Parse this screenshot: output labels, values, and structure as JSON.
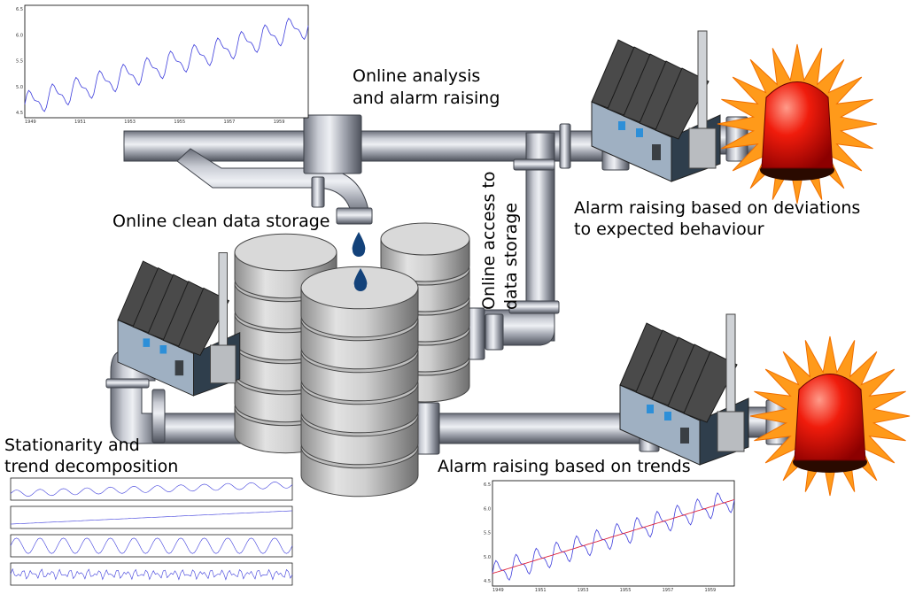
{
  "labels": {
    "online_analysis": [
      "Online analysis",
      "and alarm raising"
    ],
    "clean_storage": [
      "Online clean data storage"
    ],
    "online_access": [
      "Online access to",
      "data storage"
    ],
    "deviation_alarm": [
      "Alarm raising based on deviations",
      "to expected behaviour"
    ],
    "decomposition": [
      "Stationarity and",
      "trend decomposition"
    ],
    "trend_alarm": [
      "Alarm raising based on trends"
    ]
  },
  "charts": {
    "series_chart": {
      "xticks": [
        "1949",
        "1951",
        "1953",
        "1955",
        "1957",
        "1959"
      ],
      "yticks": [
        "6.5",
        "6.0",
        "5.5",
        "5.0",
        "4.5"
      ]
    },
    "trend_chart": {
      "xticks": [
        "1949",
        "1951",
        "1953",
        "1955",
        "1957",
        "1959"
      ],
      "yticks": [
        "6.5",
        "6.0",
        "5.5",
        "5.0",
        "4.5"
      ]
    }
  }
}
